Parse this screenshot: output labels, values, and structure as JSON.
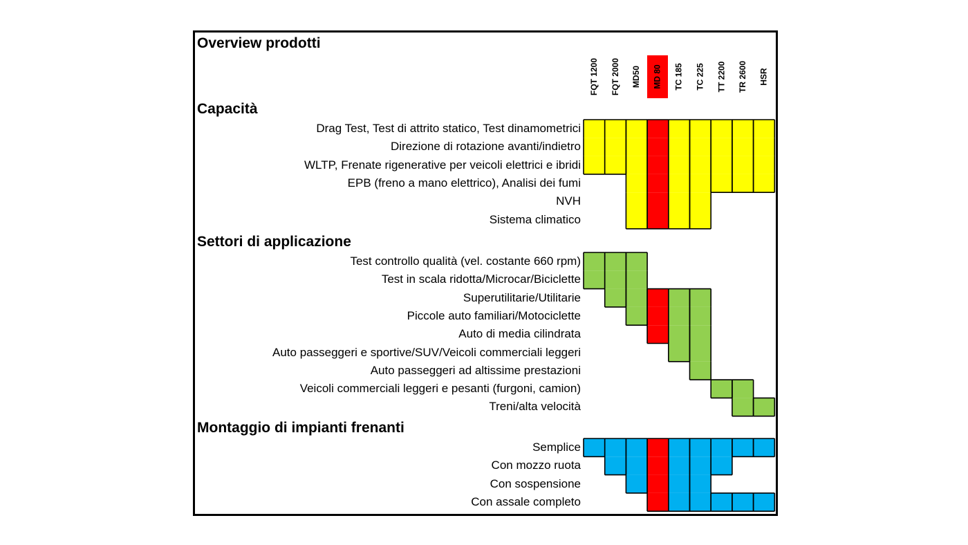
{
  "chart_data": {
    "type": "table",
    "title": "Overview prodotti",
    "columns": [
      "FQT 1200",
      "FQT 2000",
      "MD50",
      "MD 80",
      "TC 185",
      "TC 225",
      "TT 2200",
      "TR 2600",
      "HSR"
    ],
    "highlighted_column": "MD 80",
    "colors": {
      "capacita": "#ffff00",
      "settori": "#92d050",
      "montaggio": "#00b0f0",
      "highlight": "#ff0000",
      "border": "#000000"
    },
    "sections": [
      {
        "key": "capacita",
        "title": "Capacità",
        "rows": [
          {
            "label": "Drag Test, Test di attrito statico, Test dinamometrici",
            "values": [
              1,
              1,
              1,
              1,
              1,
              1,
              1,
              1,
              1
            ]
          },
          {
            "label": "Direzione di rotazione avanti/indietro",
            "values": [
              1,
              1,
              1,
              1,
              1,
              1,
              1,
              1,
              1
            ]
          },
          {
            "label": "WLTP, Frenate rigenerative per veicoli elettrici e ibridi",
            "values": [
              1,
              1,
              1,
              1,
              1,
              1,
              1,
              1,
              1
            ]
          },
          {
            "label": "EPB (freno a mano elettrico), Analisi dei fumi",
            "values": [
              0,
              0,
              1,
              1,
              1,
              1,
              1,
              1,
              1
            ]
          },
          {
            "label": "NVH",
            "values": [
              0,
              0,
              1,
              1,
              1,
              1,
              0,
              0,
              0
            ]
          },
          {
            "label": "Sistema climatico",
            "values": [
              0,
              0,
              1,
              1,
              1,
              1,
              0,
              0,
              0
            ]
          }
        ]
      },
      {
        "key": "settori",
        "title": "Settori di applicazione",
        "rows": [
          {
            "label": "Test controllo qualità (vel. costante 660 rpm)",
            "values": [
              1,
              1,
              1,
              0,
              0,
              0,
              0,
              0,
              0
            ]
          },
          {
            "label": "Test in scala ridotta/Microcar/Biciclette",
            "values": [
              1,
              1,
              1,
              0,
              0,
              0,
              0,
              0,
              0
            ]
          },
          {
            "label": "Superutilitarie/Utilitarie",
            "values": [
              0,
              1,
              1,
              1,
              1,
              1,
              0,
              0,
              0
            ]
          },
          {
            "label": "Piccole auto familiari/Motociclette",
            "values": [
              0,
              0,
              1,
              1,
              1,
              1,
              0,
              0,
              0
            ]
          },
          {
            "label": "Auto di media cilindrata",
            "values": [
              0,
              0,
              0,
              1,
              1,
              1,
              0,
              0,
              0
            ]
          },
          {
            "label": "Auto passeggeri e sportive/SUV/Veicoli commerciali leggeri",
            "values": [
              0,
              0,
              0,
              0,
              1,
              1,
              0,
              0,
              0
            ]
          },
          {
            "label": "Auto passeggeri ad altissime prestazioni",
            "values": [
              0,
              0,
              0,
              0,
              0,
              1,
              0,
              0,
              0
            ]
          },
          {
            "label": "Veicoli commerciali leggeri e pesanti (furgoni, camion)",
            "values": [
              0,
              0,
              0,
              0,
              0,
              0,
              1,
              1,
              0
            ]
          },
          {
            "label": "Treni/alta velocità",
            "values": [
              0,
              0,
              0,
              0,
              0,
              0,
              0,
              1,
              1
            ]
          }
        ]
      },
      {
        "key": "montaggio",
        "title": "Montaggio di impianti frenanti",
        "rows": [
          {
            "label": "Semplice",
            "values": [
              1,
              1,
              1,
              1,
              1,
              1,
              1,
              1,
              1
            ]
          },
          {
            "label": "Con mozzo ruota",
            "values": [
              0,
              1,
              1,
              1,
              1,
              1,
              1,
              0,
              0
            ]
          },
          {
            "label": "Con sospensione",
            "values": [
              0,
              0,
              1,
              1,
              1,
              1,
              0,
              0,
              0
            ]
          },
          {
            "label": "Con assale completo",
            "values": [
              0,
              0,
              0,
              1,
              1,
              1,
              1,
              1,
              1
            ]
          }
        ]
      }
    ]
  }
}
